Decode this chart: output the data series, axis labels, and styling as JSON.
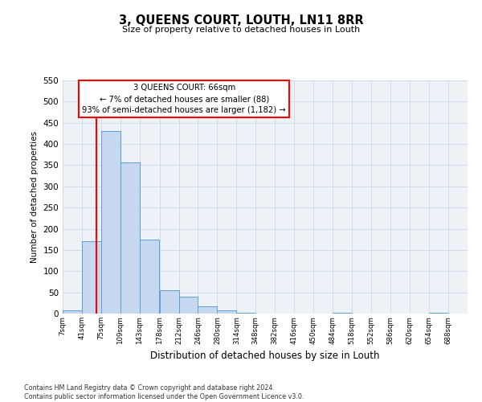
{
  "title": "3, QUEENS COURT, LOUTH, LN11 8RR",
  "subtitle": "Size of property relative to detached houses in Louth",
  "xlabel": "Distribution of detached houses by size in Louth",
  "ylabel": "Number of detached properties",
  "bin_labels": [
    "7sqm",
    "41sqm",
    "75sqm",
    "109sqm",
    "143sqm",
    "178sqm",
    "212sqm",
    "246sqm",
    "280sqm",
    "314sqm",
    "348sqm",
    "382sqm",
    "416sqm",
    "450sqm",
    "484sqm",
    "518sqm",
    "552sqm",
    "586sqm",
    "620sqm",
    "654sqm",
    "688sqm"
  ],
  "bar_values": [
    7,
    170,
    430,
    357,
    175,
    55,
    40,
    18,
    8,
    1,
    0,
    0,
    0,
    0,
    1,
    0,
    0,
    0,
    0,
    1
  ],
  "bar_color": "#c5d8ef",
  "bar_edge_color": "#5a9fd4",
  "ylim": [
    0,
    550
  ],
  "yticks": [
    0,
    50,
    100,
    150,
    200,
    250,
    300,
    350,
    400,
    450,
    500,
    550
  ],
  "property_line_x": 66,
  "property_line_label": "3 QUEENS COURT: 66sqm",
  "annotation_line1": "← 7% of detached houses are smaller (88)",
  "annotation_line2": "93% of semi-detached houses are larger (1,182) →",
  "bin_edges": [
    7,
    41,
    75,
    109,
    143,
    178,
    212,
    246,
    280,
    314,
    348,
    382,
    416,
    450,
    484,
    518,
    552,
    586,
    620,
    654,
    688
  ],
  "footer_line1": "Contains HM Land Registry data © Crown copyright and database right 2024.",
  "footer_line2": "Contains public sector information licensed under the Open Government Licence v3.0.",
  "bg_color": "#eef2f7",
  "grid_color": "#c8d8e8"
}
